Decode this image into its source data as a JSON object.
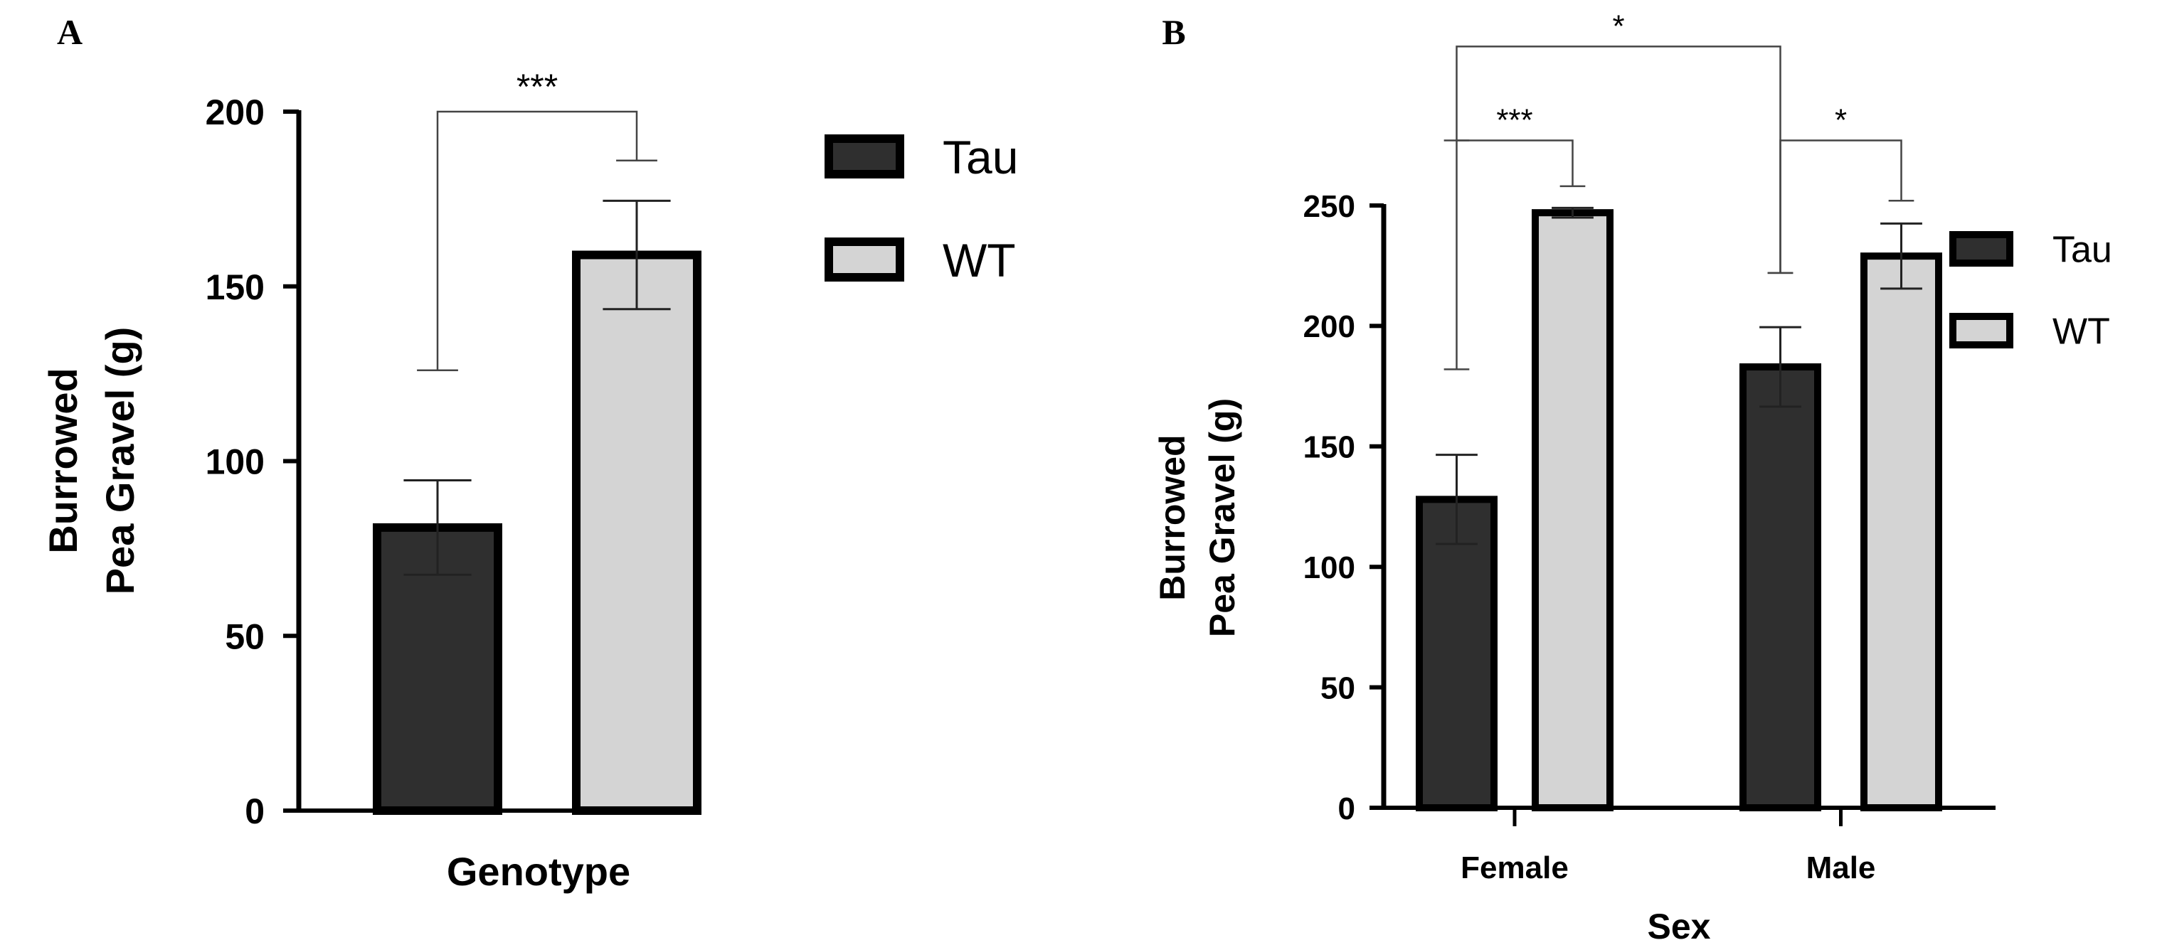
{
  "chart_data": [
    {
      "panel": "A",
      "type": "bar",
      "xlabel": "Genotype",
      "ylabel_lines": [
        "Burrowed",
        "Pea Gravel (g)"
      ],
      "ylim": [
        0,
        200
      ],
      "yticks": [
        0,
        50,
        100,
        150,
        200
      ],
      "categories": [
        ""
      ],
      "series": [
        {
          "name": "Tau",
          "values": [
            81
          ],
          "errors": [
            13.5
          ]
        },
        {
          "name": "WT",
          "values": [
            159
          ],
          "errors": [
            15.5
          ]
        }
      ],
      "colors": {
        "Tau": "#2f2f2f",
        "WT": "#d4d4d4"
      },
      "significance": [
        {
          "label": "***",
          "left_bar": [
            0,
            0
          ],
          "right_bar": [
            0,
            1
          ],
          "left_y": 126,
          "right_y": 186,
          "top_y": 200
        }
      ],
      "legend": [
        "Tau",
        "WT"
      ]
    },
    {
      "panel": "B",
      "type": "bar",
      "xlabel": "Sex",
      "ylabel_lines": [
        "Burrowed",
        "Pea Gravel (g)"
      ],
      "ylim": [
        0,
        250
      ],
      "yticks": [
        0,
        50,
        100,
        150,
        200,
        250
      ],
      "categories": [
        "Female",
        "Male"
      ],
      "series": [
        {
          "name": "Tau",
          "values": [
            128,
            183
          ],
          "errors": [
            18.5,
            16.5
          ]
        },
        {
          "name": "WT",
          "values": [
            247,
            229
          ],
          "errors": [
            2,
            13.5
          ]
        }
      ],
      "colors": {
        "Tau": "#2f2f2f",
        "WT": "#d4d4d4"
      },
      "significance": [
        {
          "label": "***",
          "left_bar": [
            0,
            0
          ],
          "right_bar": [
            0,
            1
          ],
          "left_y": 182,
          "right_y": 258,
          "top_y": 277
        },
        {
          "label": "*",
          "left_bar": [
            1,
            0
          ],
          "right_bar": [
            1,
            1
          ],
          "left_y": 222,
          "right_y": 252,
          "top_y": 277
        },
        {
          "label": "*",
          "left_bar": [
            0,
            0
          ],
          "right_bar": [
            1,
            0
          ],
          "left_y": 277,
          "right_y": 222,
          "top_y": 316
        }
      ],
      "legend": [
        "Tau",
        "WT"
      ]
    }
  ]
}
